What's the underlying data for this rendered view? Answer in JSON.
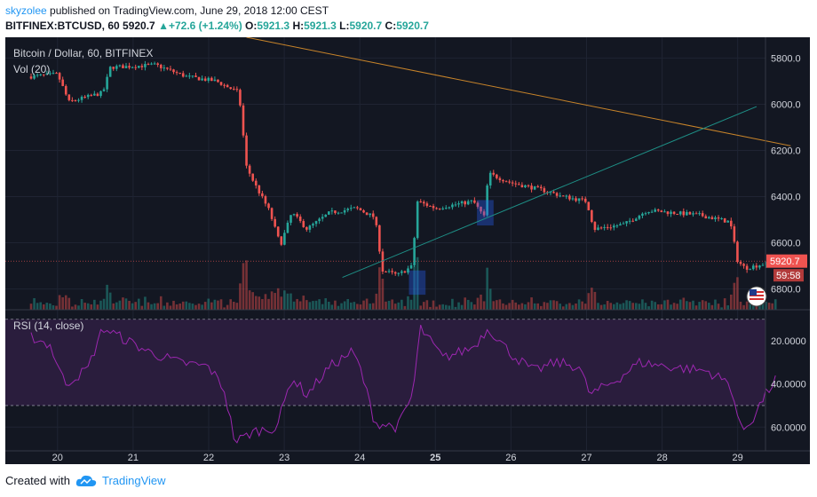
{
  "header": {
    "author": "skyzolee",
    "published_text": "published on TradingView.com, June 29, 2018 12:00 CEST",
    "symbol": "BITFINEX:BTCUSD, 60",
    "price": "5920.7",
    "change_arrow": "▲",
    "change": "+72.6 (+1.24%)",
    "o_label": "O:",
    "o_value": "5921.3",
    "h_label": "H:",
    "h_value": "5921.3",
    "l_label": "L:",
    "l_value": "5920.7",
    "c_label": "C:",
    "c_value": "5920.7"
  },
  "chart": {
    "title": "Bitcoin / Dollar, 60, BITFINEX",
    "volume_label": "Vol (20)",
    "rsi_label": "RSI (14, close)",
    "price_badge": "5920.7",
    "countdown": "59:58",
    "price_ticks": [
      "6800.0",
      "6600.0",
      "6400.0",
      "6200.0",
      "6000.0",
      "5800.0"
    ],
    "rsi_ticks": [
      "60.0000",
      "40.0000",
      "20.0000"
    ],
    "x_ticks": [
      "20",
      "21",
      "22",
      "23",
      "24",
      "25",
      "26",
      "27",
      "28",
      "29"
    ]
  },
  "footer": {
    "created_with": "Created with",
    "brand": "TradingView"
  },
  "colors": {
    "background": "#131722",
    "up": "#26a69a",
    "down": "#ef5350",
    "rsi_line": "#9c27b0",
    "trend_down": "#c8842a",
    "trend_up": "#1e8f86"
  },
  "chart_data": {
    "type": "candlestick",
    "price_axis": {
      "ylim": [
        5710,
        6890
      ],
      "ticks": [
        5800,
        6000,
        6200,
        6400,
        6600,
        6800
      ]
    },
    "rsi_axis": {
      "ylim": [
        9,
        74
      ],
      "ticks": [
        20,
        40,
        60
      ],
      "bands": [
        30,
        70
      ]
    },
    "x_axis": {
      "categories": [
        "20",
        "21",
        "22",
        "23",
        "24",
        "25",
        "26",
        "27",
        "28",
        "29"
      ]
    },
    "price_anchors": [
      {
        "x": 19.65,
        "p": 6720
      },
      {
        "x": 20.0,
        "p": 6730
      },
      {
        "x": 20.15,
        "p": 6610
      },
      {
        "x": 20.6,
        "p": 6650
      },
      {
        "x": 20.7,
        "p": 6760
      },
      {
        "x": 21.3,
        "p": 6770
      },
      {
        "x": 21.7,
        "p": 6720
      },
      {
        "x": 22.1,
        "p": 6700
      },
      {
        "x": 22.4,
        "p": 6650
      },
      {
        "x": 22.5,
        "p": 6330
      },
      {
        "x": 22.6,
        "p": 6260
      },
      {
        "x": 22.8,
        "p": 6140
      },
      {
        "x": 22.95,
        "p": 5990
      },
      {
        "x": 23.1,
        "p": 6130
      },
      {
        "x": 23.3,
        "p": 6060
      },
      {
        "x": 23.6,
        "p": 6130
      },
      {
        "x": 23.95,
        "p": 6150
      },
      {
        "x": 24.2,
        "p": 6110
      },
      {
        "x": 24.3,
        "p": 5880
      },
      {
        "x": 24.5,
        "p": 5860
      },
      {
        "x": 24.7,
        "p": 5900
      },
      {
        "x": 24.75,
        "p": 6180
      },
      {
        "x": 25.0,
        "p": 6150
      },
      {
        "x": 25.5,
        "p": 6180
      },
      {
        "x": 25.65,
        "p": 6110
      },
      {
        "x": 25.7,
        "p": 6300
      },
      {
        "x": 26.0,
        "p": 6260
      },
      {
        "x": 26.4,
        "p": 6230
      },
      {
        "x": 26.7,
        "p": 6200
      },
      {
        "x": 27.0,
        "p": 6180
      },
      {
        "x": 27.1,
        "p": 6060
      },
      {
        "x": 27.5,
        "p": 6080
      },
      {
        "x": 27.8,
        "p": 6140
      },
      {
        "x": 28.5,
        "p": 6120
      },
      {
        "x": 28.9,
        "p": 6090
      },
      {
        "x": 29.0,
        "p": 5920
      },
      {
        "x": 29.1,
        "p": 5890
      },
      {
        "x": 29.5,
        "p": 5920
      }
    ],
    "rsi_anchors": [
      {
        "x": 19.65,
        "r": 62
      },
      {
        "x": 19.9,
        "r": 58
      },
      {
        "x": 20.1,
        "r": 40
      },
      {
        "x": 20.4,
        "r": 47
      },
      {
        "x": 20.6,
        "r": 66
      },
      {
        "x": 21.2,
        "r": 55
      },
      {
        "x": 21.6,
        "r": 50
      },
      {
        "x": 22.0,
        "r": 48
      },
      {
        "x": 22.2,
        "r": 38
      },
      {
        "x": 22.35,
        "r": 13
      },
      {
        "x": 22.6,
        "r": 18
      },
      {
        "x": 22.9,
        "r": 20
      },
      {
        "x": 23.1,
        "r": 43
      },
      {
        "x": 23.3,
        "r": 35
      },
      {
        "x": 23.6,
        "r": 48
      },
      {
        "x": 23.9,
        "r": 55
      },
      {
        "x": 24.0,
        "r": 48
      },
      {
        "x": 24.2,
        "r": 22
      },
      {
        "x": 24.5,
        "r": 20
      },
      {
        "x": 24.7,
        "r": 35
      },
      {
        "x": 24.8,
        "r": 66
      },
      {
        "x": 25.1,
        "r": 52
      },
      {
        "x": 25.5,
        "r": 57
      },
      {
        "x": 25.7,
        "r": 66
      },
      {
        "x": 26.0,
        "r": 54
      },
      {
        "x": 26.3,
        "r": 46
      },
      {
        "x": 26.6,
        "r": 50
      },
      {
        "x": 26.9,
        "r": 48
      },
      {
        "x": 27.05,
        "r": 35
      },
      {
        "x": 27.4,
        "r": 42
      },
      {
        "x": 27.7,
        "r": 50
      },
      {
        "x": 28.1,
        "r": 48
      },
      {
        "x": 28.6,
        "r": 46
      },
      {
        "x": 28.9,
        "r": 40
      },
      {
        "x": 29.05,
        "r": 18
      },
      {
        "x": 29.2,
        "r": 24
      },
      {
        "x": 29.35,
        "r": 34
      },
      {
        "x": 29.5,
        "r": 42
      }
    ],
    "trendlines": [
      {
        "name": "descending",
        "from": {
          "x": 22.5,
          "p": 6890
        },
        "to": {
          "x": 29.7,
          "p": 6420
        }
      },
      {
        "name": "ascending",
        "from": {
          "x": 23.77,
          "p": 5850
        },
        "to": {
          "x": 29.25,
          "p": 6590
        }
      }
    ],
    "highlight_boxes": [
      {
        "x0": 24.65,
        "x1": 24.87,
        "p0": 5775,
        "p1": 5880
      },
      {
        "x0": 25.55,
        "x1": 25.77,
        "p0": 6075,
        "p1": 6185
      }
    ],
    "last_price": 5920.7
  }
}
